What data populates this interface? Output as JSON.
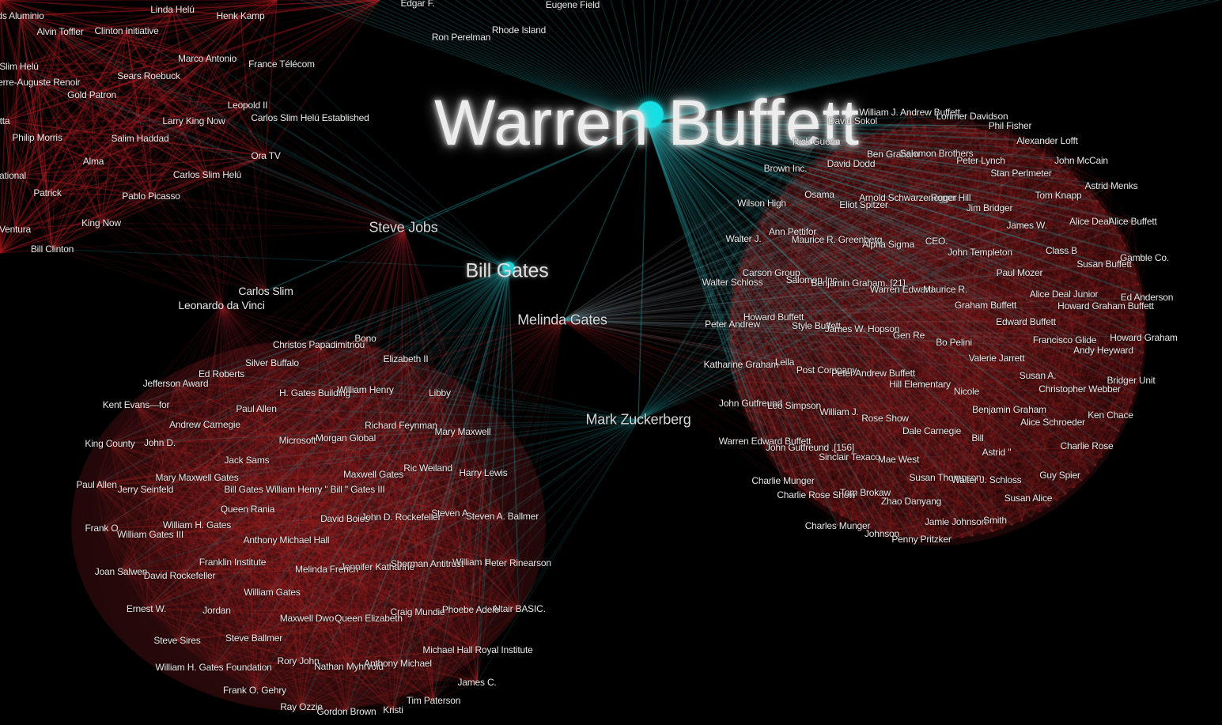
{
  "colors": {
    "background": "#000000",
    "cluster_edge": "#a8242a",
    "focus_edge": "#2fb7bd",
    "focus_node": "#14e1e6",
    "label": "#e8e8e8"
  },
  "labels": {
    "warren_buffett": "Warren Buffett",
    "bill_gates": "Bill Gates",
    "melinda_gates": "Melinda Gates",
    "steve_jobs": "Steve Jobs",
    "carlos_slim": "Carlos Slim",
    "leonardo": "Leonardo da Vinci",
    "mark_zuckerberg": "Mark Zuckerberg",
    "bill_clinton": "Bill Clinton",
    "los_aluminio": "ds Aluminio",
    "linda_helu": "Linda Helú",
    "henk_kamp": "Henk Kamp",
    "edgar_f": "Edgar F.",
    "eugene_field": "Eugene Field",
    "alvin_toffler": "Alvin Toffler",
    "clinton_initiative": "Clinton Initiative",
    "ron_perelman": "Ron Perelman",
    "rhode_island": "Rhode Island",
    "marco_antonio": "Marco Antonio",
    "slim_helu": "Slim Helú",
    "france_telecom": "France Télécom",
    "sears_roebuck": "Sears Roebuck",
    "pierre_auguste": "ierre-Auguste Renoir",
    "gold_patron": "Gold Patron",
    "leopold_ii": "Leopold II",
    "tta": "tta",
    "larry_king_now": "Larry King Now",
    "carlos_slim_helu_est": "Carlos Slim Helú Established",
    "philip_morris": "Philip Morris",
    "salim_haddad": "Salim Haddad",
    "ora_tv": "Ora TV",
    "alma": "Alma",
    "ational": "ational",
    "carlos_slim_helu": "Carlos Slim Helú",
    "patrick": "Patrick",
    "pablo_picasso": "Pablo Picasso",
    "king_now": "King Now",
    "ventura": "Ventura",
    "christos": "Christos Papadimitriou",
    "bono": "Bono",
    "silver_buffalo": "Silver Buffalo",
    "elizabeth_ii": "Elizabeth II",
    "ed_roberts": "Ed Roberts",
    "jefferson_award": "Jefferson Award",
    "h_gates_building": "H. Gates Building",
    "william_henry": "William Henry",
    "libby": "Libby",
    "kent_evans": "Kent Evans—for",
    "paul_allen_1": "Paul Allen",
    "andrew_carnegie": "Andrew Carnegie",
    "richard_feynman": "Richard Feynman",
    "mary_maxwell": "Mary Maxwell",
    "king_county": "King County",
    "john_d": "John D.",
    "microsoft": "Microsoft",
    "morgan_global": "Morgan Global",
    "jack_sams": "Jack Sams",
    "ric_weiland": "Ric Weiland",
    "harry_lewis": "Harry Lewis",
    "paul_allen_2": "Paul Allen",
    "mary_maxwell_gates": "Mary Maxwell Gates",
    "maxwell_gates": "Maxwell Gates",
    "jerry_seinfeld": "Jerry Seinfeld",
    "bill_gates_william_henry": "Bill Gates William Henry \" Bill \" Gates III",
    "queen_rania": "Queen Rania",
    "steven_a": "Steven A.",
    "steven_a_ballmer": "Steven A. Ballmer",
    "david_boies": "David Boies",
    "john_d_rockefeller": "John D. Rockefeller",
    "frank_o": "Frank O.",
    "william_h_gates": "William H. Gates",
    "william_gates_iii": "William Gates III",
    "anthony_michael_hall": "Anthony Michael Hall",
    "franklin_institute": "Franklin Institute",
    "jennifer_katharine": "Jennifer Katharine",
    "sherman_antitrust": "Sherman Antitrust",
    "william_h_2": "William H.",
    "peter_rinearson": "Peter Rinearson",
    "joan_salwen": "Joan Salwen",
    "david_rockefeller": "David Rockefeller",
    "melinda_french": "Melinda French",
    "william_gates": "William Gates",
    "ernest_w": "Ernest W.",
    "jordan": "Jordan",
    "altair_basic": "Altair BASIC.",
    "maxwell_dwo": "Maxwell Dwo",
    "queen_elizabeth": "Queen Elizabeth",
    "craig_mundie": "Craig Mundie",
    "phoebe_adele": "Phoebe Adele",
    "steve_sires": "Steve Sires",
    "steve_ballmer": "Steve Ballmer",
    "michael_hall_royal": "Michael Hall Royal Institute",
    "rory_john": "Rory John",
    "nathan_myhrvold": "Nathan Myhrvold",
    "anthony_michael": "Anthony Michael",
    "whg_foundation": "William H. Gates Foundation",
    "james_c": "James C.",
    "frank_o_gehry": "Frank O. Gehry",
    "tim_paterson": "Tim Paterson",
    "ray_ozzie": "Ray Ozzie",
    "gordon_brown": "Gordon Brown",
    "kristi": "Kristi",
    "william_j_andrew": "William J. Andrew Buffett",
    "lorimer_davidson": "Lorimer Davidson",
    "david_sokol": "David Sokol",
    "phil_fisher": "Phil Fisher",
    "rick_guerin": "Rick Guerin",
    "alexander_lofft": "Alexander Lofft",
    "ben_graham": "Ben Graham",
    "salomon_brothers": "Salomon Brothers",
    "peter_lynch": "Peter Lynch",
    "john_mccain": "John McCain",
    "brown_inc": "Brown Inc.",
    "david_dodd": "David Dodd",
    "stan_perlmeter": "Stan Perlmeter",
    "astrid_menks": "Astrid Menks",
    "osama": "Osama",
    "arnold": "Arnold Schwarzenegger",
    "roger_hill": "Roger Hill",
    "tom_knapp": "Tom Knapp",
    "wilson_high": "Wilson High",
    "eliot_spitzer": "Eliot Spitzer",
    "jim_bridger": "Jim Bridger",
    "james_w": "James W.",
    "alice_deal": "Alice Deal",
    "alice_buffett": "Alice Buffett",
    "ann_pettifor": "Ann Pettifor",
    "walter_j": "Walter J.",
    "maurice_greenberg": "Maurice R. Greenberg",
    "alpha_sigma": "Alpha Sigma",
    "ceo": "CEO.",
    "john_templeton": "John Templeton",
    "class_b": "Class B",
    "gamble_co": "Gamble Co.",
    "susan_buffett": "Susan Buffett",
    "carson_group": "Carson Group",
    "paul_mozer": "Paul Mozer",
    "walter_schloss": "Walter Schloss",
    "salomon_inc": "Salomon Inc",
    "benjamin_graham_21": "Benjamin Graham. [21]",
    "warren_edward": "Warren Edward",
    "maurice_r": "Maurice R.",
    "alice_deal_junior": "Alice Deal Junior",
    "ed_anderson": "Ed Anderson",
    "graham_buffett": "Graham Buffett",
    "howard_graham_buffett": "Howard Graham Buffett",
    "howard_buffett": "Howard Buffett",
    "peter_andrew": "Peter Andrew",
    "style_buffett": "Style Buffett",
    "edward_buffett": "Edward Buffett",
    "james_w_hopson": "James W. Hopson",
    "gen_re": "Gen Re",
    "bo_pelini": "Bo Pelini",
    "francisco_glide": "Francisco Glide",
    "howard_graham": "Howard Graham",
    "andy_heyward": "Andy Heyward",
    "katharine_graham": "Katharine Graham",
    "leila": "Leila",
    "post_company": "Post Company",
    "valerie_jarrett": "Valerie Jarrett",
    "peter_andrew_buffett": "Peter Andrew Buffett",
    "susan_a": "Susan A.",
    "bridger_unit": "Bridger Unit",
    "hill_elementary": "Hill Elementary",
    "christopher_webber": "Christopher Webber",
    "nicole": "Nicole",
    "john_gutfreund": "John Gutfreund",
    "leo_simpson": "Leo Simpson",
    "benjamin_graham": "Benjamin Graham",
    "william_j": "William J.",
    "rose_show": "Rose Show",
    "ken_chace": "Ken Chace",
    "alice_schroeder": "Alice Schroeder",
    "dale_carnegie": "Dale Carnegie",
    "warren_edward_buffett": "Warren Edward Buffett",
    "bill": "Bill",
    "john_gutfreund_156": "John Gutfreund .[156]",
    "charlie_rose": "Charlie Rose",
    "sinclair_texaco": "Sinclair Texaco",
    "astrid": "Astrid \"",
    "mae_west": "Mae West",
    "guy_spier": "Guy Spier",
    "charlie_munger": "Charlie Munger",
    "susan_thompson": "Susan Thompson",
    "walter_j_schloss": "Walter J. Schloss",
    "charlie_rose_show": "Charlie Rose Show",
    "tom_brokaw": "Tom Brokaw",
    "zhao_danyang": "Zhao Danyang",
    "susan_alice": "Susan Alice",
    "charles_munger": "Charles Munger",
    "jamie_johnson": "Jamie Johnson",
    "smith": "Smith",
    "johnson": "Johnson",
    "penny_pritzker": "Penny Pritzker"
  }
}
